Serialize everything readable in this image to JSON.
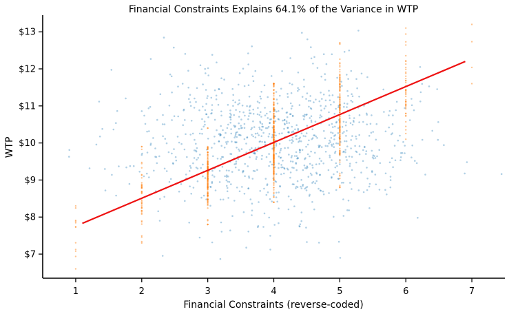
{
  "chart_data": {
    "type": "scatter",
    "title": "Financial Constraints Explains 64.1% of the Variance in WTP",
    "xlabel": "Financial Constraints (reverse-coded)",
    "ylabel": "WTP",
    "xlim": [
      0.5,
      7.5
    ],
    "ylim": [
      6.35,
      13.45
    ],
    "x_ticks": [
      1,
      2,
      3,
      4,
      5,
      6,
      7
    ],
    "x_tick_labels": [
      "1",
      "2",
      "3",
      "4",
      "5",
      "6",
      "7"
    ],
    "y_ticks": [
      7,
      8,
      9,
      10,
      11,
      12,
      13
    ],
    "y_tick_labels": [
      "$7",
      "$8",
      "$9",
      "$10",
      "$11",
      "$12",
      "$13"
    ],
    "grid": false,
    "legend": "none",
    "series": [
      {
        "kind": "jittered scatter",
        "color": "#1f77b4",
        "opacity": 0.35,
        "n_points": 1000,
        "x_center": 4.0,
        "x_sd": 1.0,
        "y_center": 10.0,
        "y_sd": 1.0
      },
      {
        "kind": "integer-x scatter",
        "color": "#ff7f0e",
        "opacity": 0.45,
        "groups": [
          {
            "x": 1,
            "y_range": [
              6.6,
              8.3
            ],
            "n": 12
          },
          {
            "x": 2,
            "y_range": [
              7.3,
              9.9
            ],
            "n": 45
          },
          {
            "x": 3,
            "y_range": [
              7.8,
              10.4
            ],
            "n": 140
          },
          {
            "x": 4,
            "y_range": [
              8.4,
              11.6
            ],
            "n": 260
          },
          {
            "x": 5,
            "y_range": [
              8.8,
              12.7
            ],
            "n": 140
          },
          {
            "x": 6,
            "y_range": [
              10.1,
              13.1
            ],
            "n": 45
          },
          {
            "x": 7,
            "y_range": [
              11.6,
              13.2
            ],
            "n": 4
          }
        ]
      }
    ],
    "regression_line": {
      "color": "#ee1111",
      "x": [
        1.1,
        6.9
      ],
      "y": [
        7.83,
        12.2
      ]
    }
  }
}
